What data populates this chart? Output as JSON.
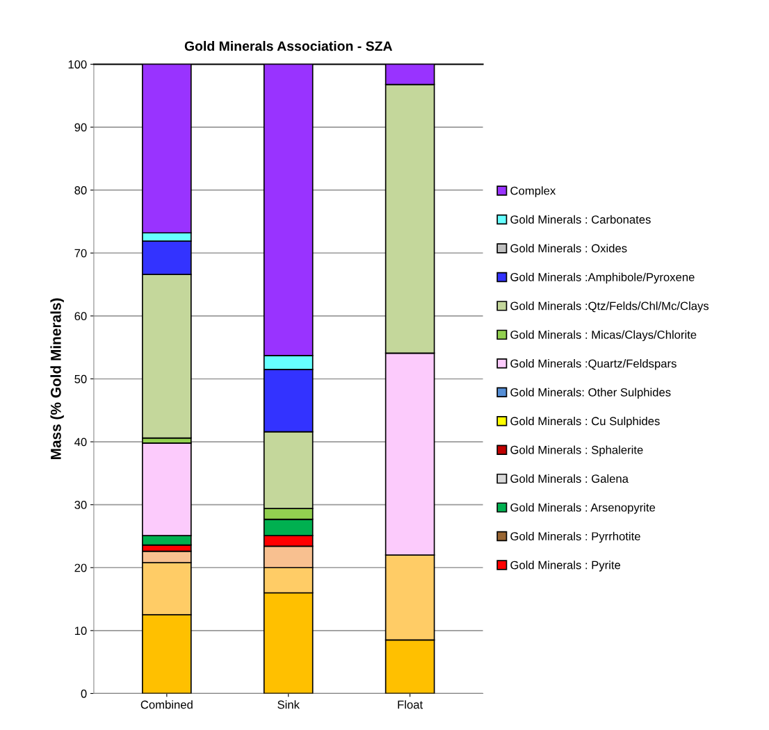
{
  "chart_data": {
    "type": "bar",
    "title": "Gold Minerals Association - SZA",
    "ylabel": "Mass (% Gold Minerals)",
    "categories": [
      "Combined",
      "Sink",
      "Float"
    ],
    "stacked": true,
    "ylim": [
      0,
      100
    ],
    "yticks": [
      0,
      10,
      20,
      30,
      40,
      50,
      60,
      70,
      80,
      90,
      100
    ],
    "grid": "y",
    "legend": "right",
    "series": [
      {
        "color": "#ffc000",
        "values": [
          12.5,
          16.0,
          8.5
        ]
      },
      {
        "color": "#ffcc66",
        "values": [
          8.3,
          4.0,
          13.5
        ]
      },
      {
        "color": "#f8c090",
        "values": [
          1.8,
          3.4,
          0
        ]
      },
      {
        "name": "Gold Minerals : Pyrite",
        "color": "#ff0000",
        "values": [
          1.0,
          1.7,
          0
        ]
      },
      {
        "name": "Gold Minerals : Pyrrhotite",
        "color": "#996633",
        "values": [
          0,
          0,
          0
        ]
      },
      {
        "name": "Gold Minerals : Arsenopyrite",
        "color": "#00b050",
        "values": [
          1.5,
          2.6,
          0
        ]
      },
      {
        "name": "Gold Minerals : Galena",
        "color": "#d9d9d9",
        "values": [
          0,
          0,
          0
        ]
      },
      {
        "name": "Gold Minerals : Sphalerite",
        "color": "#c00000",
        "values": [
          0,
          0,
          0
        ]
      },
      {
        "name": "Gold Minerals : Cu Sulphides",
        "color": "#ffff00",
        "values": [
          0,
          0,
          0
        ]
      },
      {
        "name": "Gold Minerals: Other Sulphides",
        "color": "#558ed5",
        "values": [
          0,
          0,
          0
        ]
      },
      {
        "name": "Gold Minerals :Quartz/Feldspars",
        "color": "#fccbfc",
        "values": [
          14.7,
          0,
          32.1
        ]
      },
      {
        "name": "Gold Minerals : Micas/Clays/Chlorite",
        "color": "#92d050",
        "values": [
          0.8,
          1.7,
          0
        ]
      },
      {
        "name": "Gold Minerals :Qtz/Felds/Chl/Mc/Clays",
        "color": "#c4d79b",
        "values": [
          26.0,
          12.2,
          42.7
        ]
      },
      {
        "name": "Gold Minerals :Amphibole/Pyroxene",
        "color": "#3333ff",
        "values": [
          5.3,
          9.9,
          0
        ]
      },
      {
        "name": "Gold Minerals : Oxides",
        "color": "#bfbfbf",
        "values": [
          0,
          0,
          0
        ]
      },
      {
        "name": "Gold Minerals : Carbonates",
        "color": "#66ffff",
        "values": [
          1.3,
          2.2,
          0
        ]
      },
      {
        "name": "Complex",
        "color": "#9933ff",
        "values": [
          26.8,
          46.3,
          3.2
        ]
      }
    ]
  }
}
